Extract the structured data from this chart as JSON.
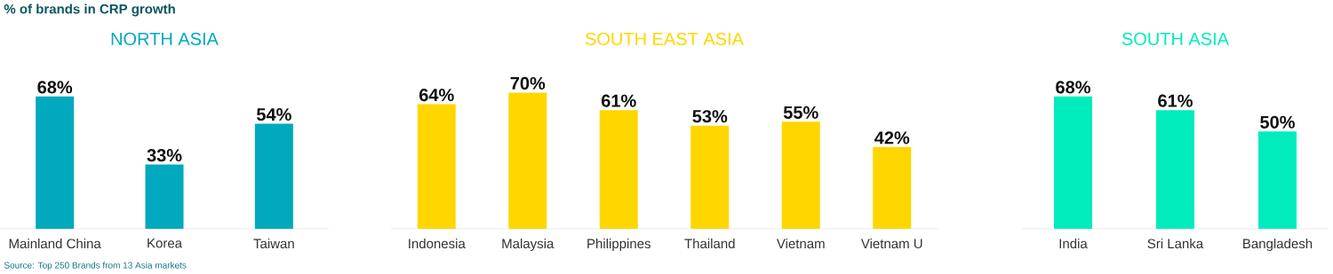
{
  "chart_data": [
    {
      "type": "other",
      "title": "% of brands in CRP growth",
      "annotations": [
        "Source: Top 250 Brands from 13 Asia markets"
      ]
    },
    {
      "type": "bar",
      "title": "NORTH ASIA",
      "categories": [
        "Mainland China",
        "Korea",
        "Taiwan"
      ],
      "values": [
        68,
        33,
        54
      ],
      "value_labels": [
        "68%",
        "33%",
        "54%"
      ],
      "color": "#00a9bd"
    },
    {
      "type": "bar",
      "title": "SOUTH EAST ASIA",
      "categories": [
        "Indonesia",
        "Malaysia",
        "Philippines",
        "Thailand",
        "Vietnam",
        "Vietnam U"
      ],
      "values": [
        64,
        70,
        61,
        53,
        55,
        42
      ],
      "value_labels": [
        "64%",
        "70%",
        "61%",
        "53%",
        "55%",
        "42%"
      ],
      "color": "#ffd600"
    },
    {
      "type": "bar",
      "title": "SOUTH ASIA",
      "categories": [
        "India",
        "Sri Lanka",
        "Bangladesh"
      ],
      "values": [
        68,
        61,
        50
      ],
      "value_labels": [
        "68%",
        "61%",
        "50%"
      ],
      "color": "#00ecbd"
    }
  ]
}
